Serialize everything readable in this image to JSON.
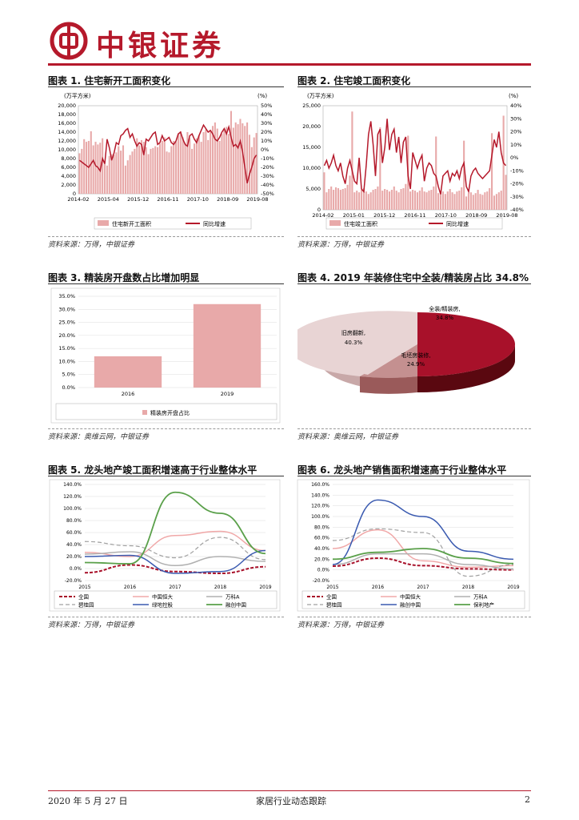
{
  "header": {
    "brand": "中银证券",
    "accent": "#b5192b"
  },
  "fig1": {
    "title": "图表 1. 住宅新开工面积变化",
    "unit_left": "(万平方米)",
    "unit_right": "(%)",
    "y_ticks": [
      "20,000",
      "18,000",
      "16,000",
      "14,000",
      "12,000",
      "10,000",
      "8,000",
      "6,000",
      "4,000",
      "2,000",
      "0"
    ],
    "y2_ticks": [
      "50%",
      "40%",
      "30%",
      "20%",
      "10%",
      "0%",
      "-10%",
      "-20%",
      "-30%",
      "-40%",
      "-50%"
    ],
    "x_ticks": [
      "2014-02",
      "2015-04",
      "2015-12",
      "2016-11",
      "2017-10",
      "2018-09",
      "2019-08"
    ],
    "legend": [
      "住宅新开工面积",
      "同比增速"
    ],
    "source": "资料来源：万得，中银证券"
  },
  "fig2": {
    "title": "图表 2. 住宅竣工面积变化",
    "unit_left": "(万平方米)",
    "unit_right": "(%)",
    "y_ticks": [
      "25,000",
      "20,000",
      "15,000",
      "10,000",
      "5,000",
      "0"
    ],
    "y2_ticks": [
      "40%",
      "30%",
      "20%",
      "10%",
      "0%",
      "-10%",
      "-20%",
      "-30%",
      "-40%"
    ],
    "x_ticks": [
      "2014-02",
      "2015-01",
      "2015-12",
      "2016-11",
      "2017-10",
      "2018-09",
      "2019-08"
    ],
    "legend": [
      "住宅竣工面积",
      "同比增速"
    ],
    "source": "资料来源：万得，中银证券"
  },
  "fig3": {
    "title": "图表 3. 精装房开盘数占比增加明显",
    "y_ticks": [
      "35.0%",
      "30.0%",
      "25.0%",
      "20.0%",
      "15.0%",
      "10.0%",
      "5.0%",
      "0.0%"
    ],
    "legend": [
      "精装房开盘占比"
    ],
    "source": "资料来源：奥维云网，中银证券"
  },
  "fig4": {
    "title": "图表 4. 2019 年装修住宅中全装/精装房占比 34.8%",
    "slices": [
      {
        "label": "全装/精装房,",
        "value": "34.8%"
      },
      {
        "label": "毛坯房装修,",
        "value": "24.9%"
      },
      {
        "label": "旧房翻新,",
        "value": "40.3%"
      }
    ],
    "source": "资料来源：奥维云网，中银证券"
  },
  "fig5": {
    "title": "图表 5. 龙头地产竣工面积增速高于行业整体水平",
    "y_ticks": [
      "140.0%",
      "120.0%",
      "100.0%",
      "80.0%",
      "60.0%",
      "40.0%",
      "20.0%",
      "0.0%",
      "-20.0%"
    ],
    "legend": [
      "全国",
      "中国恒大",
      "万科A",
      "碧桂园",
      "绿地控股",
      "融创中国"
    ],
    "source": "资料来源：万得，中银证券"
  },
  "fig6": {
    "title": "图表 6. 龙头地产销售面积增速高于行业整体水平",
    "y_ticks": [
      "160.0%",
      "140.0%",
      "120.0%",
      "100.0%",
      "80.0%",
      "60.0%",
      "40.0%",
      "20.0%",
      "0.0%",
      "-20.0%"
    ],
    "legend": [
      "全国",
      "中国恒大",
      "万科A",
      "碧桂园",
      "融创中国",
      "保利地产"
    ],
    "source": "资料来源：万得，中银证券"
  },
  "footer": {
    "date": "2020 年 5 月 27 日",
    "report": "家居行业动态跟踪",
    "page": "2"
  },
  "chart_data": [
    {
      "type": "bar",
      "title": "图表 1. 住宅新开工面积变化",
      "ylim": [
        0,
        20000
      ],
      "y2lim": [
        -50,
        50
      ],
      "series": [
        {
          "name": "住宅新开工面积",
          "values": [
            9200,
            10200,
            12400,
            11800,
            12000,
            14200,
            11000,
            11800,
            11200,
            11600,
            12600,
            6800,
            6400,
            8600,
            9000,
            8800,
            9400,
            10800,
            9800,
            11000,
            6400,
            7600,
            8800,
            9600,
            10200,
            12600,
            11000,
            12200,
            11800,
            10600,
            9000,
            10200,
            10400,
            10800,
            10600,
            11400,
            12000,
            12800,
            9600,
            9400,
            10800,
            12000,
            11800,
            13600,
            14200,
            12800,
            11600,
            14000,
            12600,
            10200,
            11400,
            12600,
            13200,
            11800,
            14000,
            14600,
            12200,
            14400,
            15400,
            16200,
            14800,
            12000,
            13600,
            14400,
            15200,
            13600,
            18800,
            15000,
            16200,
            15800,
            17000,
            16000,
            15400,
            16200,
            13400,
            10600,
            12800,
            13800
          ]
        },
        {
          "name": "同比增速",
          "values": [
            -12,
            -14,
            -16,
            -18,
            -20,
            -16,
            -12,
            -18,
            -20,
            -24,
            -10,
            -16,
            12,
            2,
            -12,
            -4,
            8,
            6,
            16,
            18,
            22,
            24,
            14,
            18,
            10,
            4,
            8,
            6,
            -6,
            12,
            10,
            14,
            18,
            20,
            6,
            8,
            16,
            10,
            12,
            14,
            8,
            6,
            10,
            18,
            20,
            12,
            6,
            4,
            16,
            18,
            12,
            8,
            16,
            22,
            28,
            24,
            20,
            22,
            18,
            12,
            10,
            14,
            20,
            24,
            18,
            26,
            14,
            4,
            6,
            2,
            10,
            -2,
            -20,
            -38,
            -28,
            -20,
            -10,
            -6
          ]
        }
      ]
    },
    {
      "type": "bar",
      "title": "图表 2. 住宅竣工面积变化",
      "ylim": [
        0,
        25000
      ],
      "y2lim": [
        -40,
        40
      ],
      "series": [
        {
          "name": "住宅竣工面积",
          "values": [
            9000,
            4200,
            5000,
            5600,
            4800,
            5400,
            5200,
            4800,
            5000,
            5200,
            6000,
            8200,
            23600,
            4200,
            4600,
            4200,
            4800,
            5200,
            4400,
            3800,
            4200,
            4800,
            5000,
            5600,
            19800,
            4600,
            5000,
            4800,
            4400,
            4800,
            5600,
            4600,
            4200,
            5000,
            5200,
            6200,
            17800,
            4400,
            4800,
            4600,
            4200,
            4600,
            5400,
            4400,
            4200,
            4600,
            4800,
            5600,
            17600,
            4000,
            4200,
            4400,
            3800,
            4400,
            5000,
            4200,
            3800,
            4400,
            4600,
            5400,
            16600,
            3200,
            4000,
            4200,
            3600,
            4000,
            4800,
            3800,
            3600,
            4200,
            4400,
            5200,
            18400,
            3400,
            3800,
            4200,
            4600,
            22600,
            8400
          ]
        },
        {
          "name": "同比增速",
          "values": [
            -6,
            -2,
            -8,
            -4,
            2,
            -6,
            -10,
            -4,
            -14,
            -20,
            -8,
            -2,
            -10,
            -18,
            -20,
            0,
            -24,
            -26,
            -6,
            18,
            28,
            10,
            -14,
            18,
            22,
            -4,
            8,
            30,
            6,
            18,
            22,
            4,
            16,
            -4,
            12,
            16,
            -14,
            -24,
            4,
            -2,
            -8,
            -2,
            2,
            -18,
            -8,
            -4,
            -6,
            -12,
            -14,
            -22,
            -28,
            -14,
            -12,
            -10,
            -18,
            -12,
            -14,
            -10,
            -16,
            -8,
            -4,
            -22,
            -26,
            -14,
            -10,
            -8,
            -12,
            -14,
            -16,
            -14,
            -12,
            -10,
            2,
            14,
            8,
            20,
            4,
            -4,
            -6
          ]
        }
      ]
    },
    {
      "type": "bar",
      "title": "图表 3. 精装房开盘数占比增加明显",
      "categories": [
        "2016",
        "2019"
      ],
      "ylim": [
        0,
        35
      ],
      "series": [
        {
          "name": "精装房开盘占比",
          "values": [
            12.0,
            32.0
          ]
        }
      ]
    },
    {
      "type": "pie",
      "title": "图表 4. 2019 年装修住宅中全装/精装房占比 34.8%",
      "categories": [
        "全装/精装房",
        "毛坯房装修",
        "旧房翻新"
      ],
      "values": [
        34.8,
        24.9,
        40.3
      ]
    },
    {
      "type": "line",
      "title": "图表 5. 龙头地产竣工面积增速高于行业整体水平",
      "categories": [
        "2015",
        "2016",
        "2017",
        "2018",
        "2019"
      ],
      "ylim": [
        -20,
        140
      ],
      "series": [
        {
          "name": "全国",
          "values": [
            -7,
            6,
            -5,
            -8,
            3
          ]
        },
        {
          "name": "中国恒大",
          "values": [
            27,
            20,
            55,
            62,
            30
          ]
        },
        {
          "name": "万科A",
          "values": [
            24,
            28,
            5,
            20,
            12
          ]
        },
        {
          "name": "碧桂园",
          "values": [
            45,
            38,
            18,
            52,
            15
          ]
        },
        {
          "name": "绿地控股",
          "values": [
            20,
            22,
            -8,
            -5,
            30
          ]
        },
        {
          "name": "融创中国",
          "values": [
            10,
            8,
            127,
            92,
            25
          ]
        }
      ]
    },
    {
      "type": "line",
      "title": "图表 6. 龙头地产销售面积增速高于行业整体水平",
      "categories": [
        "2015",
        "2016",
        "2017",
        "2018",
        "2019"
      ],
      "ylim": [
        -20,
        160
      ],
      "series": [
        {
          "name": "全国",
          "values": [
            7,
            22,
            8,
            2,
            0
          ]
        },
        {
          "name": "中国恒大",
          "values": [
            40,
            75,
            17,
            5,
            8
          ]
        },
        {
          "name": "万科A",
          "values": [
            10,
            30,
            30,
            10,
            2
          ]
        },
        {
          "name": "碧桂园",
          "values": [
            55,
            77,
            70,
            -12,
            10
          ]
        },
        {
          "name": "融创中国",
          "values": [
            10,
            131,
            100,
            35,
            20
          ]
        },
        {
          "name": "保利地产",
          "values": [
            20,
            33,
            40,
            22,
            12
          ]
        }
      ]
    }
  ]
}
